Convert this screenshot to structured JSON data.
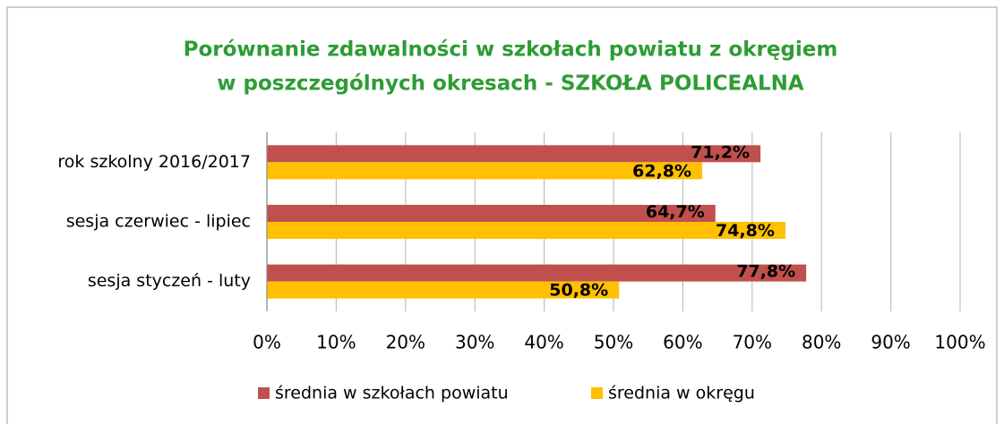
{
  "chart_data": {
    "type": "hbar",
    "title": [
      "Porównanie zdawalności w szkołach powiatu z okręgiem",
      "w poszczególnych okresach - SZKOŁA POLICEALNA"
    ],
    "categories": [
      "rok szkolny 2016/2017",
      "sesja czerwiec - lipiec",
      "sesja styczeń - luty"
    ],
    "series": [
      {
        "name": "średnia w szkołach powiatu",
        "color": "#c0504d",
        "values": [
          71.2,
          64.7,
          77.8
        ],
        "value_labels": [
          "71,2%",
          "64,7%",
          "77,8%"
        ]
      },
      {
        "name": "średnia w okręgu",
        "color": "#ffc000",
        "values": [
          62.8,
          74.8,
          50.8
        ],
        "value_labels": [
          "62,8%",
          "74,8%",
          "50,8%"
        ]
      }
    ],
    "xlim": [
      0,
      100
    ],
    "xticks": [
      {
        "value": 0,
        "label": "0%"
      },
      {
        "value": 10,
        "label": "10%"
      },
      {
        "value": 20,
        "label": "20%"
      },
      {
        "value": 30,
        "label": "30%"
      },
      {
        "value": 40,
        "label": "40%"
      },
      {
        "value": 50,
        "label": "50%"
      },
      {
        "value": 60,
        "label": "60%"
      },
      {
        "value": 70,
        "label": "70%"
      },
      {
        "value": 80,
        "label": "80%"
      },
      {
        "value": 90,
        "label": "90%"
      },
      {
        "value": 100,
        "label": "100%"
      }
    ],
    "grid": true,
    "legend": "bottom"
  }
}
